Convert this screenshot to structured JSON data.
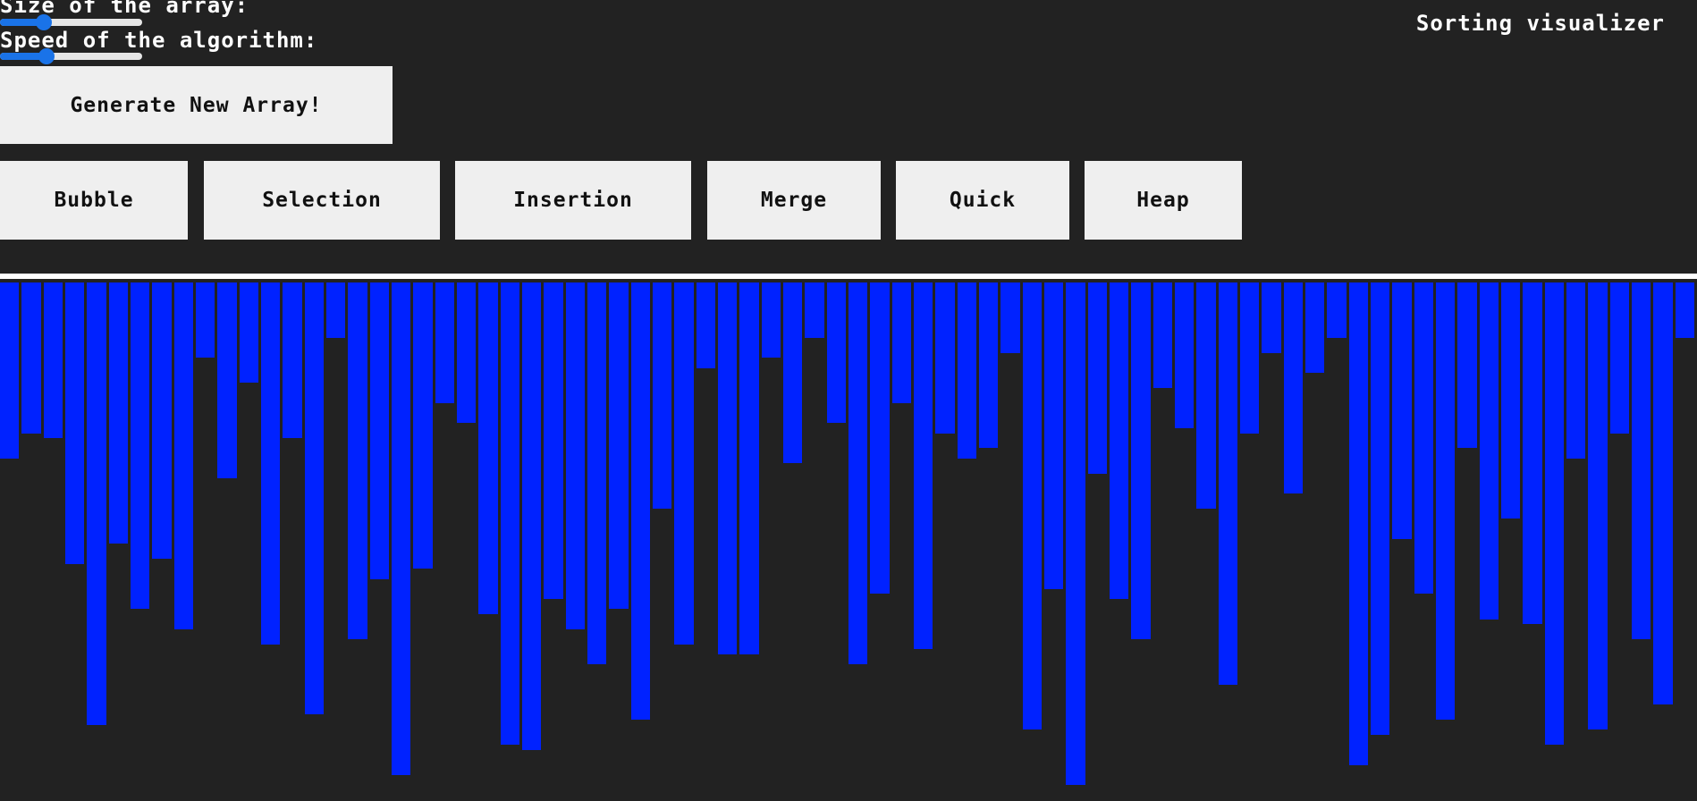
{
  "controls": {
    "size_label": "Size of the array:",
    "speed_label": "Speed of the algorithm:",
    "size_value": 0.31,
    "speed_value": 0.33,
    "generate_label": "Generate New Array!"
  },
  "title": "Sorting visualizer",
  "algorithms": {
    "bubble": "Bubble",
    "selection": "Selection",
    "insertion": "Insertion",
    "merge": "Merge",
    "quick": "Quick",
    "heap": "Heap"
  },
  "colors": {
    "background": "#222222",
    "bar": "#0022ff",
    "slider_accent": "#1a73e8",
    "button": "#efefef"
  },
  "array": {
    "max": 100,
    "values": [
      35,
      30,
      31,
      56,
      88,
      52,
      65,
      55,
      69,
      15,
      39,
      20,
      72,
      31,
      86,
      11,
      71,
      59,
      98,
      57,
      24,
      28,
      66,
      92,
      93,
      63,
      69,
      76,
      65,
      87,
      45,
      72,
      17,
      74,
      74,
      15,
      36,
      11,
      28,
      76,
      62,
      24,
      73,
      30,
      35,
      33,
      14,
      89,
      61,
      100,
      38,
      63,
      71,
      21,
      29,
      45,
      80,
      30,
      14,
      42,
      18,
      11,
      96,
      90,
      51,
      62,
      87,
      33,
      67,
      47,
      68,
      92,
      35,
      89,
      30,
      71,
      84,
      11
    ]
  }
}
